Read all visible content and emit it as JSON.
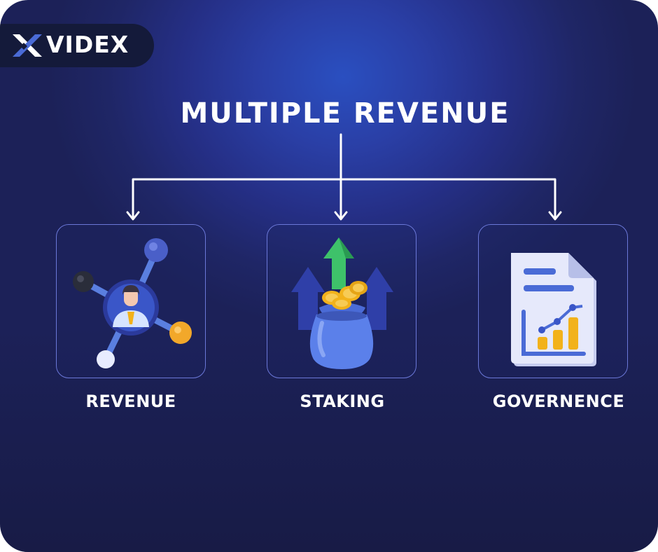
{
  "brand": {
    "name": "VIDEX",
    "icon": "x-logo-icon"
  },
  "title": "MULTIPLE REVENUE",
  "items": [
    {
      "label": "REVENUE",
      "icon": "network-person-icon"
    },
    {
      "label": "STAKING",
      "icon": "money-bag-arrows-icon"
    },
    {
      "label": "GOVERNENCE",
      "icon": "document-chart-icon"
    }
  ],
  "colors": {
    "background": "#252f86",
    "accent_blue": "#5b7fe6",
    "border": "#6b78d8",
    "gold": "#f2b21b",
    "green": "#3ec26a",
    "text": "#ffffff"
  }
}
